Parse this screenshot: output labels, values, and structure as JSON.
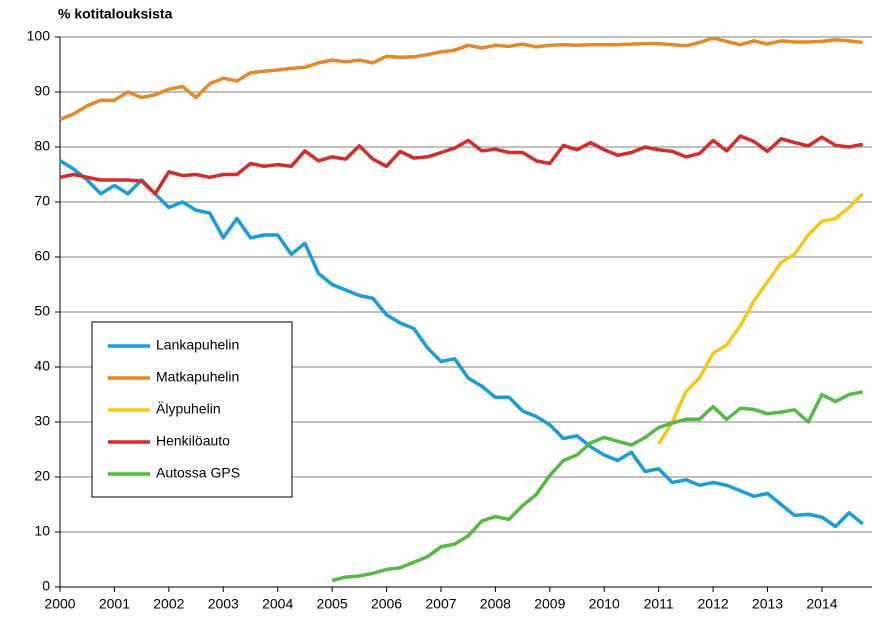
{
  "chart_data": {
    "type": "line",
    "title": "% kotitalouksista",
    "x": [
      2000,
      2000.25,
      2000.5,
      2000.75,
      2001,
      2001.25,
      2001.5,
      2001.75,
      2002,
      2002.25,
      2002.5,
      2002.75,
      2003,
      2003.25,
      2003.5,
      2003.75,
      2004,
      2004.25,
      2004.5,
      2004.75,
      2005,
      2005.25,
      2005.5,
      2005.75,
      2006,
      2006.25,
      2006.5,
      2006.75,
      2007,
      2007.25,
      2007.5,
      2007.75,
      2008,
      2008.25,
      2008.5,
      2008.75,
      2009,
      2009.25,
      2009.5,
      2009.75,
      2010,
      2010.25,
      2010.5,
      2010.75,
      2011,
      2011.25,
      2011.5,
      2011.75,
      2012,
      2012.25,
      2012.5,
      2012.75,
      2013,
      2013.25,
      2013.5,
      2013.75,
      2014,
      2014.25,
      2014.5,
      2014.75
    ],
    "xlim": [
      2000,
      2014.92
    ],
    "xticks": [
      2000,
      2001,
      2002,
      2003,
      2004,
      2005,
      2006,
      2007,
      2008,
      2009,
      2010,
      2011,
      2012,
      2013,
      2014
    ],
    "ylim": [
      0,
      100
    ],
    "yticks": [
      0,
      10,
      20,
      30,
      40,
      50,
      60,
      70,
      80,
      90,
      100
    ],
    "grid": true,
    "legend": "center left",
    "series": [
      {
        "name": "Lankapuhelin",
        "color": "#1b9bd7",
        "values": [
          77.5,
          76,
          74,
          71.5,
          73,
          71.5,
          74,
          71.5,
          69,
          70,
          68.5,
          68,
          63.5,
          67,
          63.5,
          64,
          64,
          60.5,
          62.5,
          57,
          55,
          54,
          53,
          52.5,
          49.5,
          48,
          47,
          43.5,
          41,
          41.5,
          38,
          36.5,
          34.5,
          34.5,
          32,
          31,
          29.5,
          27,
          27.5,
          25.5,
          24,
          23,
          24.5,
          21,
          21.5,
          19,
          19.5,
          18.5,
          19,
          18.5,
          17.5,
          16.5,
          17,
          15,
          13,
          13.2,
          12.7,
          11,
          13.5,
          11.5
        ]
      },
      {
        "name": "Matkapuhelin",
        "color": "#df8a2b",
        "values": [
          85,
          86,
          87.5,
          88.5,
          88.5,
          90,
          89,
          89.5,
          90.5,
          91,
          89,
          91.5,
          92.5,
          92,
          93.5,
          93.8,
          94,
          94.3,
          94.5,
          95.3,
          95.8,
          95.5,
          95.8,
          95.3,
          96.5,
          96.3,
          96.4,
          96.8,
          97.3,
          97.6,
          98.5,
          98,
          98.5,
          98.3,
          98.7,
          98.2,
          98.5,
          98.6,
          98.5,
          98.6,
          98.6,
          98.6,
          98.7,
          98.8,
          98.8,
          98.6,
          98.4,
          99,
          99.8,
          99.2,
          98.6,
          99.3,
          98.7,
          99.3,
          99.1,
          99.1,
          99.2,
          99.5,
          99.3,
          99
        ]
      },
      {
        "name": "Älypuhelin",
        "color": "#f2c81c",
        "values": [
          null,
          null,
          null,
          null,
          null,
          null,
          null,
          null,
          null,
          null,
          null,
          null,
          null,
          null,
          null,
          null,
          null,
          null,
          null,
          null,
          null,
          null,
          null,
          null,
          null,
          null,
          null,
          null,
          null,
          null,
          null,
          null,
          null,
          null,
          null,
          null,
          null,
          null,
          null,
          null,
          null,
          null,
          null,
          null,
          26,
          30,
          35.5,
          38,
          42.5,
          44,
          47.5,
          52,
          55.5,
          59,
          60.5,
          64,
          66.5,
          67,
          69,
          71.5
        ]
      },
      {
        "name": "Henkilöauto",
        "color": "#cf2f2c",
        "values": [
          74.5,
          75,
          74.5,
          74,
          74,
          74,
          73.8,
          71.5,
          75.5,
          74.8,
          75,
          74.5,
          75,
          75,
          77,
          76.5,
          76.8,
          76.5,
          79.3,
          77.5,
          78.2,
          77.8,
          80.2,
          77.8,
          76.5,
          79.2,
          78,
          78.2,
          79,
          79.8,
          81.2,
          79.3,
          79.6,
          79,
          79,
          77.5,
          77,
          80.3,
          79.5,
          80.8,
          79.5,
          78.5,
          79,
          80,
          79.5,
          79.2,
          78.2,
          78.8,
          81.2,
          79.3,
          82,
          81,
          79.2,
          81.5,
          80.8,
          80.2,
          81.8,
          80.3,
          80,
          80.5
        ]
      },
      {
        "name": "Autossa GPS",
        "color": "#58b845",
        "values": [
          null,
          null,
          null,
          null,
          null,
          null,
          null,
          null,
          null,
          null,
          null,
          null,
          null,
          null,
          null,
          null,
          null,
          null,
          null,
          null,
          1.2,
          1.8,
          2,
          2.5,
          3.2,
          3.5,
          4.5,
          5.5,
          7.3,
          7.8,
          9.3,
          12,
          12.8,
          12.3,
          14.8,
          16.8,
          20.3,
          23,
          24,
          26.2,
          27.2,
          26.5,
          25.8,
          27.2,
          29,
          29.8,
          30.5,
          30.5,
          32.8,
          30.5,
          32.5,
          32.3,
          31.5,
          31.8,
          32.2,
          30,
          35,
          33.7,
          35,
          35.5
        ]
      }
    ]
  }
}
